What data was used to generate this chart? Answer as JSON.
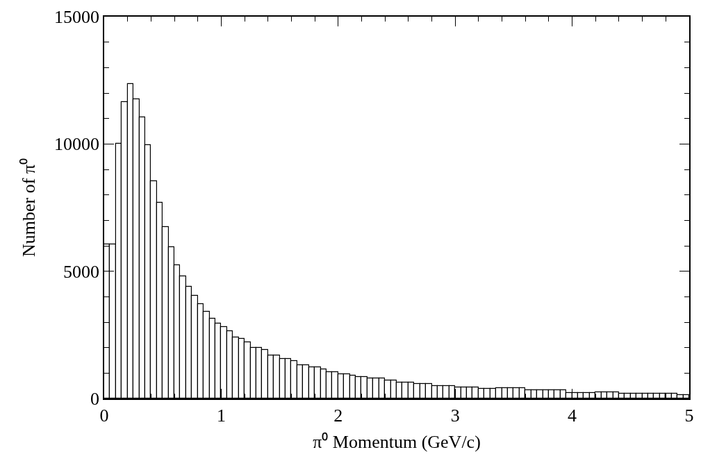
{
  "chart_data": {
    "type": "histogram",
    "xlabel": "π⁰ Momentum (GeV/c)",
    "ylabel": "Number of π⁰",
    "color": "#000000",
    "bins": [
      0,
      0.05,
      0.1,
      0.15,
      0.2,
      0.25,
      0.3,
      0.35,
      0.4,
      0.45,
      0.5,
      0.55,
      0.6,
      0.65,
      0.7,
      0.75,
      0.8,
      0.85,
      0.9,
      0.95,
      1,
      1.05,
      1.1,
      1.15,
      1.2,
      1.25,
      1.3,
      1.35,
      1.4,
      1.45,
      1.5,
      1.55,
      1.6,
      1.65,
      1.7,
      1.75,
      1.8,
      1.85,
      1.9,
      1.95,
      2,
      2.05,
      2.1,
      2.15,
      2.2,
      2.25,
      2.3,
      2.35,
      2.4,
      2.45,
      2.5,
      2.55,
      2.6,
      2.65,
      2.7,
      2.75,
      2.8,
      2.85,
      2.9,
      2.95,
      3,
      3.05,
      3.1,
      3.15,
      3.2,
      3.25,
      3.3,
      3.35,
      3.4,
      3.45,
      3.5,
      3.55,
      3.6,
      3.65,
      3.7,
      3.75,
      3.8,
      3.85,
      3.9,
      3.95,
      4,
      4.05,
      4.1,
      4.15,
      4.2,
      4.25,
      4.3,
      4.35,
      4.4,
      4.45,
      4.5,
      4.55,
      4.6,
      4.65,
      4.7,
      4.75,
      4.8,
      4.85,
      4.9,
      4.95,
      5
    ],
    "values": [
      6050,
      6050,
      10000,
      11650,
      12350,
      11750,
      11050,
      9950,
      8550,
      7700,
      6750,
      5950,
      5250,
      4800,
      4400,
      4050,
      3700,
      3400,
      3150,
      2950,
      2800,
      2650,
      2400,
      2350,
      2200,
      1990,
      1990,
      1900,
      1700,
      1680,
      1560,
      1560,
      1460,
      1310,
      1310,
      1240,
      1240,
      1150,
      1050,
      1050,
      960,
      960,
      900,
      850,
      850,
      780,
      780,
      780,
      710,
      710,
      640,
      640,
      640,
      570,
      570,
      570,
      490,
      490,
      490,
      480,
      450,
      450,
      450,
      450,
      390,
      390,
      390,
      410,
      410,
      410,
      410,
      410,
      320,
      320,
      320,
      320,
      340,
      340,
      340,
      230,
      230,
      230,
      230,
      230,
      250,
      250,
      250,
      250,
      200,
      200,
      200,
      200,
      200,
      200,
      180,
      180,
      180,
      180,
      150,
      150
    ],
    "xlim": [
      0,
      5
    ],
    "xticks": [
      0,
      1,
      2,
      3,
      4,
      5
    ],
    "ylim": [
      0,
      15000
    ],
    "yticks": [
      0,
      5000,
      10000,
      15000
    ]
  }
}
